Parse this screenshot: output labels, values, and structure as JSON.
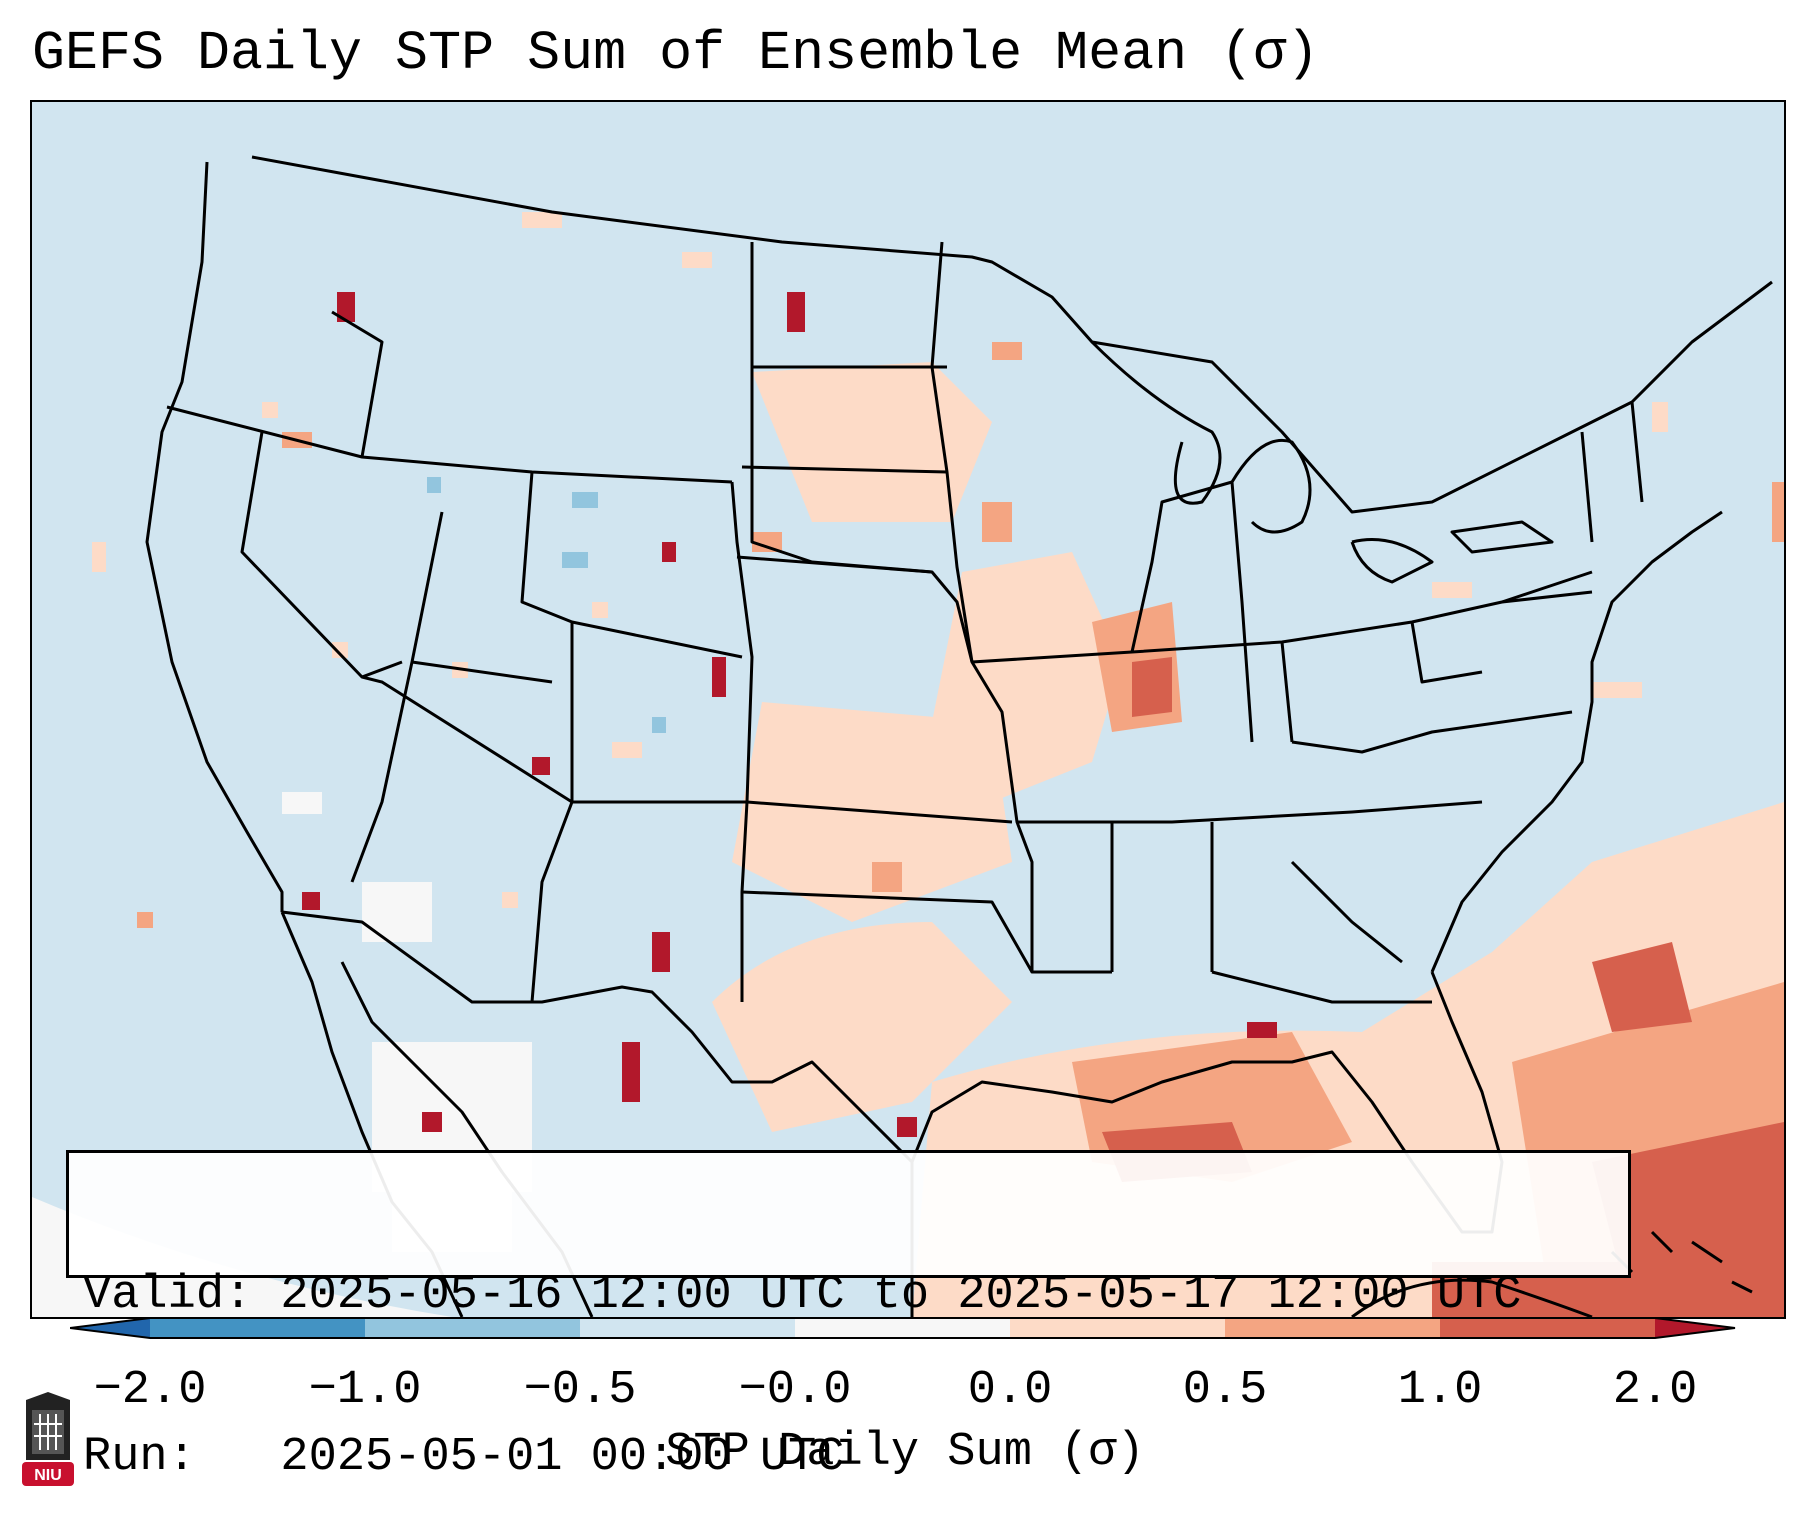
{
  "title": "GEFS Daily STP Sum of Ensemble Mean (σ)",
  "valid_line": "Valid: 2025-05-16 12:00 UTC to 2025-05-17 12:00 UTC",
  "run_line": "Run:   2025-05-01 00:00 UTC",
  "colorbar": {
    "label": "STP Daily Sum (σ)",
    "ticks": [
      "−2.0",
      "−1.0",
      "−0.5",
      "−0.0",
      "0.0",
      "0.5",
      "1.0",
      "2.0"
    ],
    "bins": [
      {
        "range": "<-2.0",
        "color": "#2166ac"
      },
      {
        "range": "-2.0 to -1.0",
        "color": "#4393c3"
      },
      {
        "range": "-1.0 to -0.5",
        "color": "#92c5de"
      },
      {
        "range": "-0.5 to -0.0",
        "color": "#d1e5f0"
      },
      {
        "range": "-0.0 to 0.0",
        "color": "#f7f7f7"
      },
      {
        "range": "0.0 to 0.5",
        "color": "#fddbc7"
      },
      {
        "range": "0.5 to 1.0",
        "color": "#f4a582"
      },
      {
        "range": "1.0 to 2.0",
        "color": "#d6604d"
      },
      {
        "range": ">2.0",
        "color": "#b2182b"
      }
    ]
  },
  "logo": {
    "text": "NIU",
    "color": "#c8102e"
  },
  "map": {
    "projection": "Lambert Conformal — CONUS",
    "background_bin": "-0.5 to -0.0",
    "regions": [
      {
        "name": "Gulf of Mexico / Florida",
        "bin": "0.0 to 0.5"
      },
      {
        "name": "Bahamas / W Atlantic",
        "bin": "1.0 to 2.0"
      },
      {
        "name": "Louisiana coast",
        "bin": "1.0 to 2.0"
      },
      {
        "name": "Iowa / Illinois",
        "bin": "0.5 to 1.0"
      },
      {
        "name": "Texas / Oklahoma",
        "bin": "0.0 to 0.5"
      },
      {
        "name": "Montana / N Dakota",
        "bin": "0.0 to 0.5"
      },
      {
        "name": "New Mexico / W Texas",
        "bin": ">2.0"
      },
      {
        "name": "NW Mexico",
        "bin": "-0.0 to 0.0"
      }
    ]
  }
}
